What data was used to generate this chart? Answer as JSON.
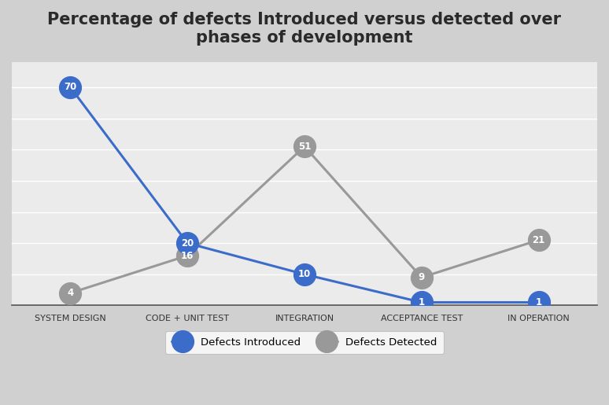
{
  "title": "Percentage of defects Introduced versus detected over\nphases of development",
  "categories": [
    "SYSTEM DESIGN",
    "CODE + UNIT TEST",
    "INTEGRATION",
    "ACCEPTANCE TEST",
    "IN OPERATION"
  ],
  "introduced": [
    70,
    20,
    10,
    1,
    1
  ],
  "detected": [
    4,
    16,
    51,
    9,
    21
  ],
  "introduced_color": "#3B6CC9",
  "detected_color": "#999999",
  "background_color": "#D8D8D8",
  "plot_bg_start": "#F5F5F5",
  "title_fontsize": 15,
  "annotation_fontsize": 8.5,
  "tick_fontsize": 8,
  "legend_label_introduced": "Defects Introduced",
  "legend_label_detected": "Defects Detected",
  "ylim": [
    0,
    78
  ],
  "marker_size": 20,
  "linewidth": 2.2
}
